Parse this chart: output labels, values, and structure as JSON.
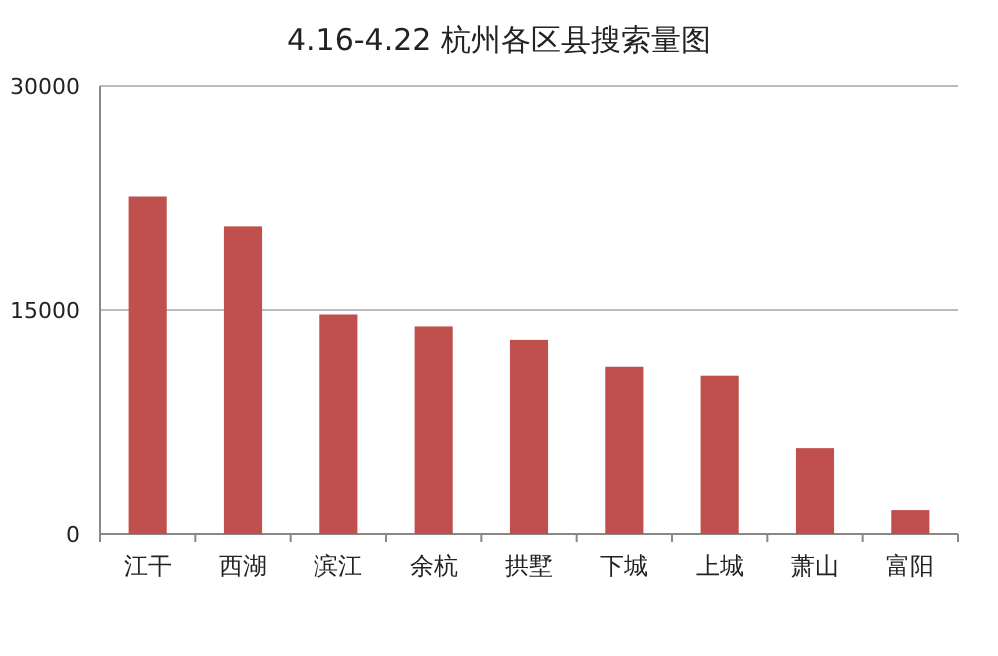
{
  "chart_data": {
    "type": "bar",
    "title": "4.16-4.22 杭州各区县搜索量图",
    "categories": [
      "江干",
      "西湖",
      "滨江",
      "余杭",
      "拱墅",
      "下城",
      "上城",
      "萧山",
      "富阳"
    ],
    "values": [
      22600,
      20600,
      14700,
      13900,
      13000,
      11200,
      10600,
      5750,
      1600
    ],
    "color": "#c0504d",
    "ylim": [
      0,
      30000
    ],
    "yticks": [
      0,
      15000,
      30000
    ],
    "grid": "y"
  }
}
